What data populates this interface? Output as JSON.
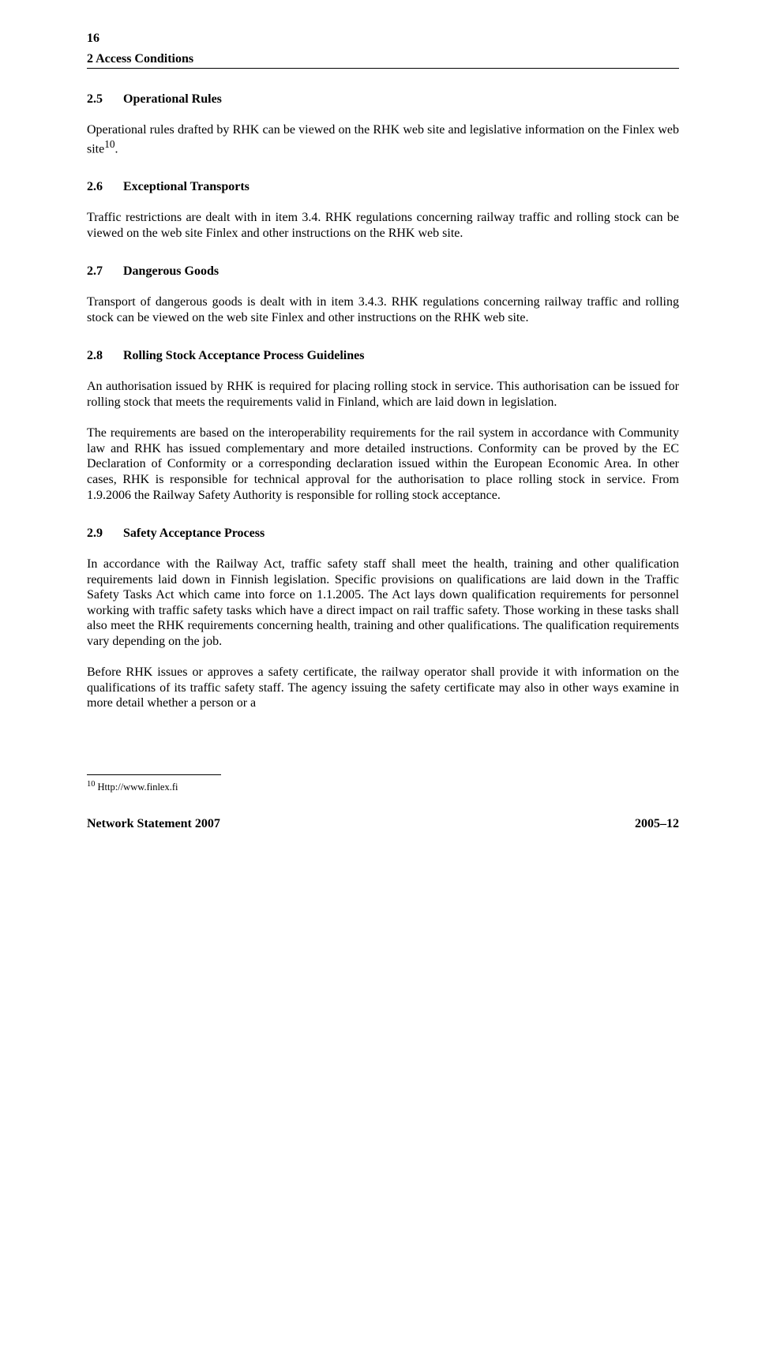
{
  "page_number": "16",
  "chapter_title": "2  Access Conditions",
  "sections": {
    "s25": {
      "num": "2.5",
      "title": "Operational Rules",
      "p1": "Operational rules drafted by RHK can be viewed on the RHK web site and legislative information on the Finlex web site",
      "sup": "10",
      "p1_end": "."
    },
    "s26": {
      "num": "2.6",
      "title": "Exceptional Transports",
      "p1": "Traffic restrictions are dealt with in item 3.4. RHK regulations concerning railway traffic and rolling stock can be viewed on the web site Finlex and other instructions on the RHK web site."
    },
    "s27": {
      "num": "2.7",
      "title": "Dangerous Goods",
      "p1": "Transport of dangerous goods is dealt with in item 3.4.3. RHK regulations concerning railway traffic and rolling stock can be viewed on the web site Finlex and other instructions on the RHK web site."
    },
    "s28": {
      "num": "2.8",
      "title": "Rolling Stock Acceptance Process Guidelines",
      "p1": "An authorisation issued by RHK is required for placing rolling stock in service. This authorisation can be issued for rolling stock that meets the requirements valid in Finland, which are laid down in legislation.",
      "p2": "The requirements are based on the interoperability requirements for the rail system in accordance with Community law and RHK has issued complementary and more detailed instructions. Conformity can be proved by the EC Declaration of Conformity or a corresponding declaration issued within the European Economic Area. In other cases, RHK is responsible for technical approval for the authorisation to place rolling stock in service. From 1.9.2006 the Railway Safety Authority is responsible for rolling stock acceptance."
    },
    "s29": {
      "num": "2.9",
      "title": "Safety Acceptance Process",
      "p1": "In accordance with the Railway Act, traffic safety staff shall meet the health, training and other qualification requirements laid down in Finnish legislation. Specific provisions on qualifications are laid down in the Traffic Safety Tasks Act which came into force on 1.1.2005. The Act lays down qualification requirements for personnel working with traffic safety tasks which have a direct impact on rail traffic safety. Those working in these tasks shall also meet the RHK requirements concerning health, training and other qualifications. The qualification requirements vary depending on the job.",
      "p2": "Before RHK issues or approves a safety certificate, the railway operator shall provide it with information on the qualifications of its traffic safety staff. The agency issuing the safety certificate may also in other ways examine in more detail whether a person or a"
    }
  },
  "footnote": {
    "marker": "10",
    "text": " Http://www.finlex.fi"
  },
  "footer": {
    "left": "Network Statement 2007",
    "right": "2005–12"
  }
}
